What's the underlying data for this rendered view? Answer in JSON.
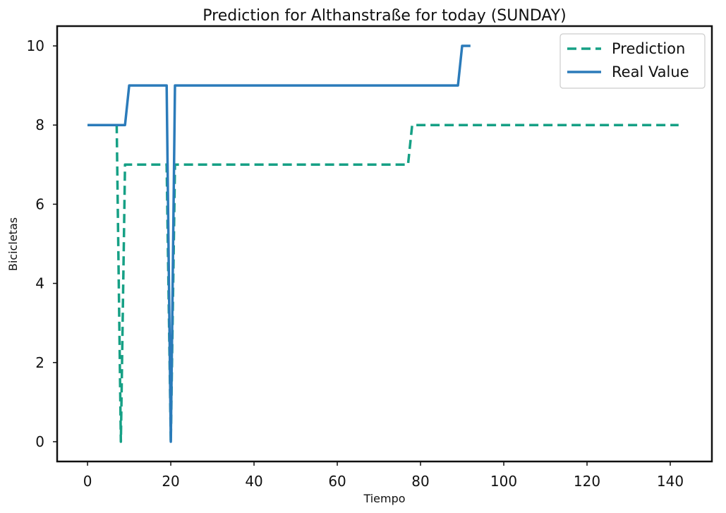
{
  "chart_data": {
    "type": "line",
    "title": "Prediction for Althanstraße for today (SUNDAY)",
    "xlabel": "Tiempo",
    "ylabel": "Bicicletas",
    "xlim": [
      -7.3,
      150
    ],
    "ylim": [
      -0.5,
      10.5
    ],
    "xticks": [
      0,
      20,
      40,
      60,
      80,
      100,
      120,
      140
    ],
    "yticks": [
      0,
      2,
      4,
      6,
      8,
      10
    ],
    "grid": false,
    "legend_position": "top-right",
    "series": [
      {
        "name": "Prediction",
        "style": "dashed",
        "color": "#16a085",
        "points": [
          [
            0,
            8
          ],
          [
            7,
            8
          ],
          [
            8,
            0
          ],
          [
            9,
            7
          ],
          [
            19,
            7
          ],
          [
            20,
            0
          ],
          [
            21,
            7
          ],
          [
            77,
            7
          ],
          [
            78,
            8
          ],
          [
            142,
            8
          ]
        ]
      },
      {
        "name": "Real Value",
        "style": "solid",
        "color": "#2b7bba",
        "points": [
          [
            0,
            8
          ],
          [
            9,
            8
          ],
          [
            10,
            9
          ],
          [
            19,
            9
          ],
          [
            20,
            0
          ],
          [
            21,
            9
          ],
          [
            89,
            9
          ],
          [
            90,
            10
          ],
          [
            92,
            10
          ]
        ]
      }
    ]
  }
}
